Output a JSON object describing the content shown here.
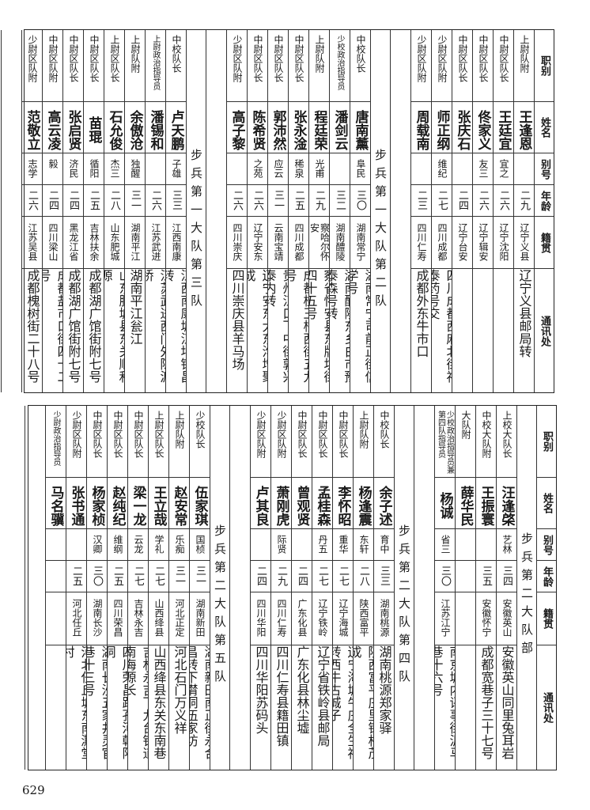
{
  "header_labels": [
    "职别",
    "姓名",
    "别号",
    "年龄",
    "籍贯",
    "通讯处"
  ],
  "tables": [
    {
      "groups": [
        {
          "title": "",
          "rows": [
            {
              "rank": "上尉队附",
              "name": "王逢恩",
              "alias": "",
              "age": "二九",
              "native": "辽宁义县",
              "address": "辽宁义县邮局转"
            },
            {
              "rank": "中尉区队长",
              "name": "王廷宜",
              "alias": "宜之",
              "age": "二六",
              "native": "辽宁沈阳",
              "address": ""
            },
            {
              "rank": "中尉区队长",
              "name": "佟家义",
              "alias": "友三",
              "age": "二六",
              "native": "辽宁辑安",
              "address": ""
            },
            {
              "rank": "中尉区队长",
              "name": "张庆石",
              "alias": "",
              "age": "二四",
              "native": "辽宁台安",
              "address": ""
            },
            {
              "rank": "少尉区队附",
              "name": "师正纲",
              "alias": "维纪",
              "age": "二七",
              "native": "四川成都",
              "address": "四川成都西麻北街福泰药号交"
            },
            {
              "rank": "少尉区队附",
              "name": "周载南",
              "alias": "",
              "age": "二三",
              "native": "四川仁寿",
              "address": "成都外东牛市口"
            }
          ]
        },
        {
          "title": "步兵第一大队第二队",
          "rows": [
            {
              "rank": "中校队长",
              "name": "唐南薰",
              "alias": "阜民",
              "age": "三〇",
              "native": "湖南常宁",
              "address": "湖南常宁司前正街信学号"
            },
            {
              "rank": "少校政治指导员",
              "name": "潘剑云",
              "alias": "",
              "age": "三二",
              "native": "湖南醴陵",
              "address": "湖南醴陵东乡白市豫泰森号转"
            },
            {
              "rank": "上尉队附",
              "name": "程廷荣",
              "alias": "光甫",
              "age": "二九",
              "native": "察哈尔怀安",
              "address": "察省怀安县东牌坊街四十五号"
            },
            {
              "rank": "中尉区队长",
              "name": "张永淦",
              "alias": "稀泉",
              "age": "二五",
              "native": "四川成都",
              "address": "成都桂王桥西街五九号"
            },
            {
              "rank": "中尉区队长",
              "name": "郭沛然",
              "alias": "应云",
              "age": "三一",
              "native": "云南宝靖",
              "address": "贵州江口下中街郭兴泰内转"
            },
            {
              "rank": "中尉区队长",
              "name": "陈希贤",
              "alias": "之苑",
              "age": "二六",
              "native": "辽宁安东",
              "address": "辽宁安东大东沟增聚成"
            },
            {
              "rank": "少尉区队附",
              "name": "高子黎",
              "alias": "",
              "age": "二六",
              "native": "四川崇庆",
              "address": "四川崇庆县羊马场"
            }
          ]
        },
        {
          "title": "步兵第一大队第三队",
          "rows": [
            {
              "rank": "中校队长",
              "name": "卢天鹏",
              "alias": "子雄",
              "age": "三三",
              "native": "江西南康",
              "address": "江西南康塘江圩锦昌转"
            },
            {
              "rank": "上尉政治指导员",
              "name": "潘锡和",
              "alias": "",
              "age": "二六",
              "native": "江苏武进",
              "address": "江苏武进西门外陈渡桥"
            },
            {
              "rank": "上尉队附",
              "name": "余傲沧",
              "alias": "独醒",
              "age": "三一",
              "native": "湖南平江",
              "address": "湖南平江瓮江"
            },
            {
              "rank": "上尉区队长",
              "name": "石允俊",
              "alias": "杰三",
              "age": "二八",
              "native": "山东肥城",
              "address": "山东肥城县东关顺和源"
            },
            {
              "rank": "中尉区队长",
              "name": "苗琨",
              "alias": "循阳",
              "age": "二五",
              "native": "吉林扶余",
              "address": "成都湖广馆街附七号"
            },
            {
              "rank": "中尉区队长",
              "name": "张启贤",
              "alias": "济民",
              "age": "二四",
              "native": "黑龙江省",
              "address": "成都湖广馆街附七号"
            },
            {
              "rank": "中尉区队附",
              "name": "高云凌",
              "alias": "毅",
              "age": "二四",
              "native": "四川梁山",
              "address": "成都盐市口街四十二号"
            },
            {
              "rank": "少尉区队附",
              "name": "范敬立",
              "alias": "志学",
              "age": "二六",
              "native": "江苏吴县",
              "address": "成都槐树街二十八号"
            }
          ]
        }
      ]
    },
    {
      "groups": [
        {
          "title": "步兵第二大队部",
          "rows": [
            {
              "rank": "上校大队长",
              "name": "汪逢棨",
              "alias": "艺林",
              "age": "三四",
              "native": "安徽英山",
              "address": "安徽英山同里兔耳岩"
            },
            {
              "rank": "中校大队附",
              "name": "王振寰",
              "alias": "",
              "age": "三五",
              "native": "安徽怀宁",
              "address": "成都宽巷子三十七号"
            },
            {
              "rank": "大队附",
              "name": "薛华民",
              "alias": "",
              "age": "",
              "native": "",
              "address": ""
            },
            {
              "rank": "少校政治指导员兼第四队指导员",
              "name": "杨诚",
              "alias": "省三",
              "age": "三〇",
              "native": "江苏江宁",
              "address": "南京城内评事街泥马巷十六号"
            }
          ]
        },
        {
          "title": "步兵第二大队第四队",
          "rows": [
            {
              "rank": "中校队长",
              "name": "余子述",
              "alias": "育中",
              "age": "三三",
              "native": "湖南桃源",
              "address": "湖南桃源郑家驿"
            },
            {
              "rank": "上尉队附",
              "name": "杨逢震",
              "alias": "东轩",
              "age": "二八",
              "native": "陕西富平",
              "address": "陕西富平庄里镇松茂成"
            },
            {
              "rank": "中尉区队长",
              "name": "李怀昭",
              "alias": "重华",
              "age": "二七",
              "native": "辽宁海城",
              "address": "辽宁海城牛庄全生福转西牛古城子"
            },
            {
              "rank": "中尉区队长",
              "name": "孟桂森",
              "alias": "丹五",
              "age": "二七",
              "native": "辽宁铁岭",
              "address": "辽宁省铁岭县邮局"
            },
            {
              "rank": "中尉区队长",
              "name": "曾观贤",
              "alias": "",
              "age": "二四",
              "native": "广东化县",
              "address": "广东化县林尘墟"
            },
            {
              "rank": "少尉区队附",
              "name": "萧刚虎",
              "alias": "际贤",
              "age": "二九",
              "native": "四川仁寿",
              "address": "四川仁寿县籍田镇"
            },
            {
              "rank": "少尉区队附",
              "name": "卢其良",
              "alias": "",
              "age": "二四",
              "native": "四川华阳",
              "address": "四川华阳苏码头"
            }
          ]
        },
        {
          "title": "步兵第二大队第五队",
          "rows": [
            {
              "rank": "少校队长",
              "name": "伍家琪",
              "alias": "国桢",
              "age": "三一",
              "native": "湖南新田",
              "address": "湖南新田南正街永合昌转下潸洞伍家坊"
            },
            {
              "rank": "上尉队附",
              "name": "赵安常",
              "alias": "乐痴",
              "age": "三一",
              "native": "河北正定",
              "address": "河北石门万义祥"
            },
            {
              "rank": "上尉区队长",
              "name": "王立哉",
              "alias": "学礼",
              "age": "二七",
              "native": "山西绛县",
              "address": "山西绛县东关东南巷"
            },
            {
              "rank": "中尉区队长",
              "name": "梁一龙",
              "alias": "云龙",
              "age": "二七",
              "native": "吉林永吉",
              "address": "吉林永吉下九台铁道南海源长"
            },
            {
              "rank": "中尉区队长",
              "name": "赵纯纪",
              "alias": "维纲",
              "age": "二五",
              "native": "四川荣昌",
              "address": "四川荣昌路孔河朝阳洞"
            },
            {
              "rank": "中尉区队长",
              "name": "杨家桢",
              "alias": "汉卿",
              "age": "三〇",
              "native": "湖南长沙",
              "address": "湖南长沙五家井灵官巷十三号"
            },
            {
              "rank": "少尉区队附",
              "name": "张书通",
              "alias": "",
              "age": "二五",
              "native": "河北任丘",
              "address": "河北任丘城东南澌堂村"
            },
            {
              "rank": "少尉政治指导员",
              "name": "马名骥",
              "alias": "",
              "age": "",
              "native": "",
              "address": ""
            }
          ]
        }
      ]
    }
  ],
  "page_number": "629"
}
